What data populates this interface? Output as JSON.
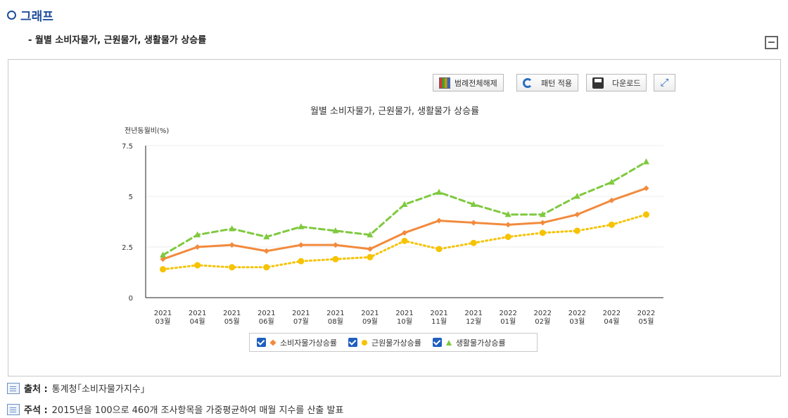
{
  "header": {
    "title": "그래프",
    "subtitle": "- 월별 소비자물가, 근원물가, 생활물가 상승률"
  },
  "toolbar": {
    "legend_toggle": "범례전체해제",
    "pattern": "패턴 적용",
    "download": "다운로드"
  },
  "notes": {
    "source_label": "출처 :",
    "source_text": "통계청｢소비자물가지수｣",
    "remark_label": "주석 :",
    "remark_text": "2015년을 100으로 460개 조사항목을 가중평균하여 매월 지수를 산출 발표"
  },
  "chart_data": {
    "type": "line",
    "title": "월별 소비자물가, 근원물가, 생활물가 상승률",
    "ylabel": "전년동월비(%)",
    "xlabel": "",
    "ylim": [
      0,
      7.5
    ],
    "yticks": [
      "0",
      "2.5",
      "5",
      "7.5"
    ],
    "categories": [
      [
        "2021",
        "03월"
      ],
      [
        "2021",
        "04월"
      ],
      [
        "2021",
        "05월"
      ],
      [
        "2021",
        "06월"
      ],
      [
        "2021",
        "07월"
      ],
      [
        "2021",
        "08월"
      ],
      [
        "2021",
        "09월"
      ],
      [
        "2021",
        "10월"
      ],
      [
        "2021",
        "11월"
      ],
      [
        "2021",
        "12월"
      ],
      [
        "2022",
        "01월"
      ],
      [
        "2022",
        "02월"
      ],
      [
        "2022",
        "03월"
      ],
      [
        "2022",
        "04월"
      ],
      [
        "2022",
        "05월"
      ]
    ],
    "series": [
      {
        "name": "소비자물가상승률",
        "color": "#f28a3c",
        "marker": "diamond",
        "dash": "solid",
        "values": [
          1.9,
          2.5,
          2.6,
          2.3,
          2.6,
          2.6,
          2.4,
          3.2,
          3.8,
          3.7,
          3.6,
          3.7,
          4.1,
          4.8,
          5.4
        ]
      },
      {
        "name": "근원물가상승률",
        "color": "#f6c300",
        "marker": "circle",
        "dash": "dotted",
        "values": [
          1.4,
          1.6,
          1.5,
          1.5,
          1.8,
          1.9,
          2.0,
          2.8,
          2.4,
          2.7,
          3.0,
          3.2,
          3.3,
          3.6,
          4.1
        ]
      },
      {
        "name": "생활물가상승률",
        "color": "#7fc93e",
        "marker": "triangle",
        "dash": "dashed",
        "values": [
          2.1,
          3.1,
          3.4,
          3.0,
          3.5,
          3.3,
          3.1,
          4.6,
          5.2,
          4.6,
          4.1,
          4.1,
          5.0,
          5.7,
          6.7
        ]
      }
    ],
    "grid": true,
    "legend_position": "bottom"
  }
}
